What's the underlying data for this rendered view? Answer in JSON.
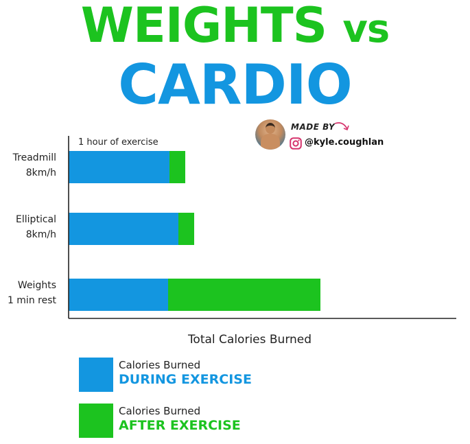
{
  "title": {
    "line1_main": "WEIGHTS",
    "line1_vs": "vs",
    "line2": "CARDIO"
  },
  "credit": {
    "made_by": "MADE BY",
    "handle": "@kyle.coughlan",
    "icons": [
      "avatar-photo",
      "arrow-icon",
      "instagram-icon"
    ]
  },
  "colors": {
    "green": "#1cc31f",
    "blue": "#1396e0"
  },
  "chart_data": {
    "type": "bar",
    "orientation": "horizontal",
    "stacked": true,
    "annotation": "1 hour of exercise",
    "categories": [
      [
        "Treadmill",
        "8km/h"
      ],
      [
        "Elliptical",
        "8km/h"
      ],
      [
        "Weights",
        "1 min rest"
      ]
    ],
    "series": [
      {
        "name": "DURING EXERCISE",
        "label_prefix": "Calories Burned",
        "color": "#1396e0",
        "values": [
          147,
          160,
          145
        ]
      },
      {
        "name": "AFTER EXERCISE",
        "label_prefix": "Calories Burned",
        "color": "#1cc31f",
        "values": [
          23,
          23,
          222
        ]
      }
    ],
    "xlabel": "Total Calories Burned",
    "ylabel": "",
    "xlim": [
      0,
      565
    ],
    "grid": false,
    "legend_position": "bottom"
  }
}
